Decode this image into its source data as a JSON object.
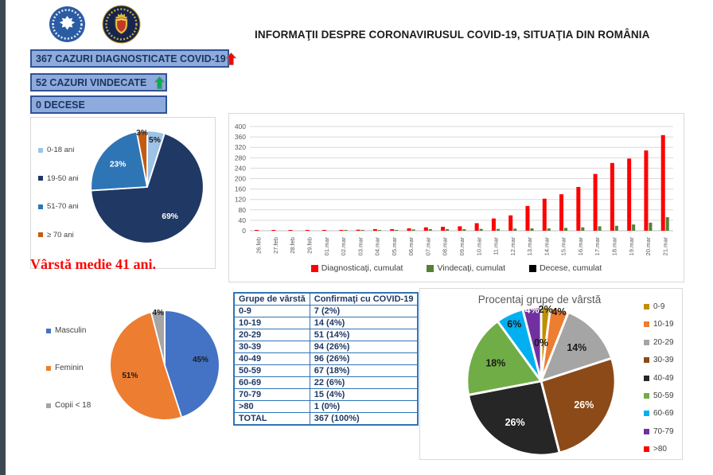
{
  "header": {
    "title": "INFORMAŢII DESPRE CORONAVIRUSUL COVID-19, SITUAŢIA DIN ROMÂNIA",
    "logos": [
      "guvernul-romaniei",
      "ministerul-afacerilor-interne"
    ]
  },
  "status": {
    "diagnosed": "367 CAZURI DIAGNOSTICATE COVID-19",
    "recovered": "52 CAZURI VINDECATE",
    "deaths": "0 DECESE"
  },
  "note": "Vârstă medie 41 ani.",
  "colors": {
    "arrow_red": "#FF0000",
    "arrow_green": "#00B050",
    "status_box_bg": "#8FAADC",
    "status_box_border": "#2F5496",
    "table_border": "#2E75B6",
    "grid": "#D9D9D9",
    "axis_text": "#595959",
    "legend_text": "#404040"
  },
  "table": {
    "headers": [
      "Grupe de vârstă",
      "Confirmaţi cu COVID-19"
    ],
    "rows": [
      [
        "0-9",
        "7 (2%)"
      ],
      [
        "10-19",
        "14 (4%)"
      ],
      [
        "20-29",
        "51 (14%)"
      ],
      [
        "30-39",
        "94 (26%)"
      ],
      [
        "40-49",
        "96 (26%)"
      ],
      [
        "50-59",
        "67 (18%)"
      ],
      [
        "60-69",
        "22 (6%)"
      ],
      [
        "70-79",
        "15 (4%)"
      ],
      [
        ">80",
        "1 (0%)"
      ],
      [
        "TOTAL",
        "367 (100%)"
      ]
    ]
  },
  "chart_data": [
    {
      "type": "pie",
      "name": "age-summary-pie",
      "labels": [
        "0-18 ani",
        "19-50 ani",
        "51-70 ani",
        "≥ 70 ani"
      ],
      "values": [
        5,
        69,
        23,
        3
      ],
      "value_labels": [
        "5%",
        "69%",
        "23%",
        "3%"
      ],
      "colors": [
        "#9DC3E6",
        "#1F3864",
        "#2E75B6",
        "#C55A11"
      ],
      "label_colors": [
        "#1a1a1a",
        "#FFFFFF",
        "#FFFFFF",
        "#26323E"
      ],
      "legend_position": "left",
      "label_size": 14,
      "stroke": 2.5
    },
    {
      "type": "bar",
      "name": "cumulative-cases-bar",
      "categories": [
        "26.feb",
        "27.feb",
        "28.feb",
        "29.feb",
        "01.mar",
        "02.mar",
        "03.mar",
        "04.mar",
        "05.mar",
        "06.mar",
        "07.mar",
        "08.mar",
        "09.mar",
        "10.mar",
        "11.mar",
        "12.mar",
        "13.mar",
        "14.mar",
        "15.mar",
        "16.mar",
        "17.mar",
        "18.mar",
        "19.mar",
        "20.mar",
        "21.mar"
      ],
      "series": [
        {
          "name": "Diagnosticaţi, cumulat",
          "color": "#FF0000",
          "values": [
            1,
            1,
            3,
            3,
            3,
            3,
            4,
            6,
            6,
            9,
            13,
            15,
            17,
            29,
            47,
            59,
            95,
            123,
            140,
            168,
            218,
            260,
            277,
            308,
            367
          ]
        },
        {
          "name": "Vindecaţi, cumulat",
          "color": "#538135",
          "values": [
            0,
            0,
            0,
            0,
            0,
            1,
            1,
            2,
            3,
            5,
            6,
            6,
            6,
            7,
            7,
            8,
            9,
            9,
            11,
            13,
            17,
            19,
            24,
            31,
            52
          ]
        },
        {
          "name": "Decese, cumulat",
          "color": "#000000",
          "values": [
            0,
            0,
            0,
            0,
            0,
            0,
            0,
            0,
            0,
            0,
            0,
            0,
            0,
            0,
            0,
            0,
            0,
            0,
            0,
            0,
            0,
            0,
            0,
            0,
            0
          ]
        }
      ],
      "ylim": [
        0,
        400
      ],
      "ytick_step": 40,
      "grid": true,
      "legend_position": "bottom"
    },
    {
      "type": "pie",
      "name": "gender-pie",
      "labels": [
        "Masculin",
        "Feminin",
        "Copii < 18"
      ],
      "values": [
        45,
        51,
        4
      ],
      "value_labels": [
        "45%",
        "51%",
        "4%"
      ],
      "colors": [
        "#4472C4",
        "#ED7D31",
        "#A5A5A5"
      ],
      "label_colors": [
        "#1a1a1a",
        "#1a1a1a",
        "#1a1a1a"
      ],
      "legend_position": "left",
      "label_size": 14,
      "stroke": 2.5
    },
    {
      "type": "pie",
      "name": "age-percent-pie",
      "title": "Procentaj grupe de vârstă",
      "labels": [
        "0-9",
        "10-19",
        "20-29",
        "30-39",
        "40-49",
        "50-59",
        "60-69",
        "70-79",
        ">80"
      ],
      "values": [
        2,
        4,
        14,
        26,
        26,
        18,
        6,
        4,
        0
      ],
      "value_labels": [
        "2%",
        "4%",
        "14%",
        "26%",
        "26%",
        "18%",
        "6%",
        "4%",
        "0%"
      ],
      "colors": [
        "#BF9000",
        "#ED7D31",
        "#A5A5A5",
        "#8B4A17",
        "#262626",
        "#70AD47",
        "#00B0F0",
        "#7030A0",
        "#FF0000"
      ],
      "label_colors": [
        "#1a1a1a",
        "#1a1a1a",
        "#1a1a1a",
        "#FFFFFF",
        "#FFFFFF",
        "#1a1a1a",
        "#1a1a1a",
        "#FFFFFF",
        "#1a1a1a"
      ],
      "legend_position": "right",
      "label_size": 13,
      "stroke": 3
    }
  ]
}
